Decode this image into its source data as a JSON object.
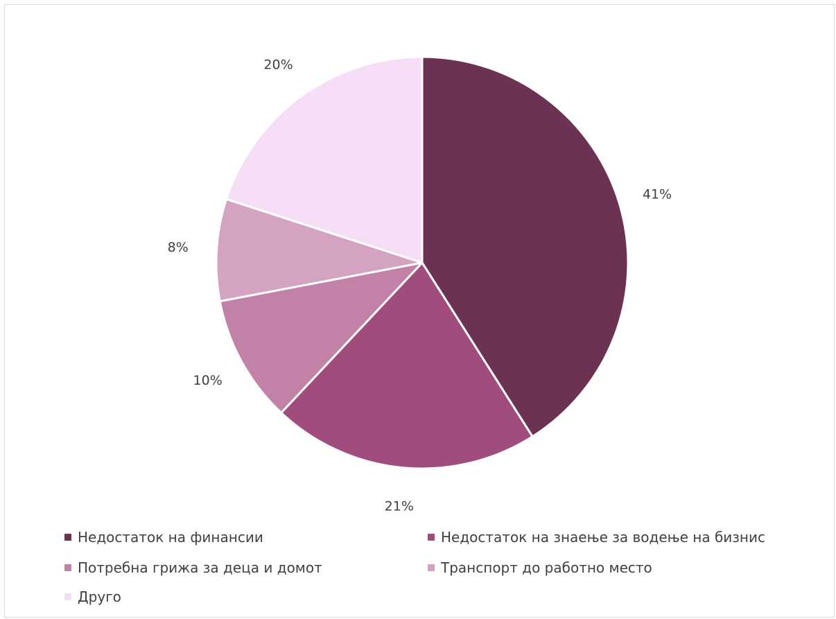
{
  "chart_data": {
    "type": "pie",
    "title": "",
    "start_angle_deg": 0,
    "direction": "clockwise",
    "slices": [
      {
        "label": "Недостаток на финансии",
        "value": 41,
        "data_label": "41%",
        "color": "#6b3253"
      },
      {
        "label": "Недостаток на знаење за водење на бизнис",
        "value": 21,
        "data_label": "21%",
        "color": "#a04c7c"
      },
      {
        "label": "Потребна грижа за деца и домот",
        "value": 10,
        "data_label": "10%",
        "color": "#c281a6"
      },
      {
        "label": "Транспорт до работно место",
        "value": 8,
        "data_label": "8%",
        "color": "#d3a3c1"
      },
      {
        "label": "Друго",
        "value": 20,
        "data_label": "20%",
        "color": "#f6dff6"
      }
    ],
    "legend_position": "bottom",
    "slice_border_color": "#ffffff"
  }
}
